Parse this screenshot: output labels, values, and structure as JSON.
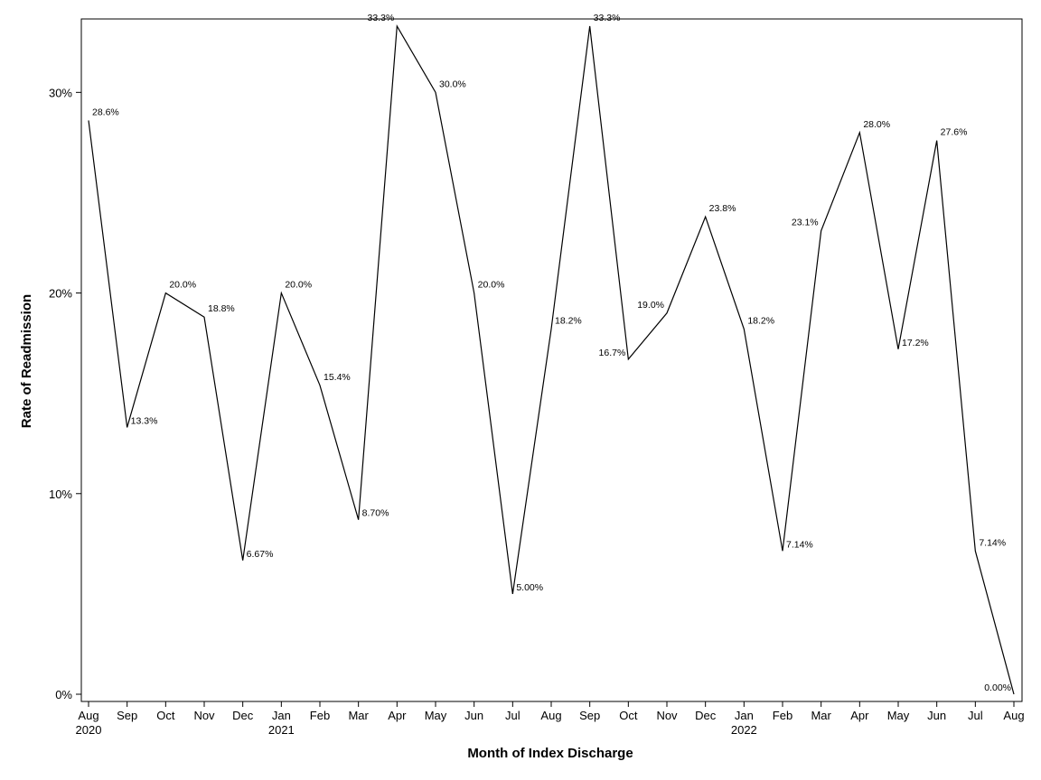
{
  "chart_data": {
    "type": "line",
    "title": "",
    "xlabel": "Month of Index Discharge",
    "ylabel": "Rate of Readmission",
    "ylim": [
      0,
      33.3
    ],
    "yticks": [
      {
        "value": 0,
        "label": "0%"
      },
      {
        "value": 10,
        "label": "10%"
      },
      {
        "value": 20,
        "label": "20%"
      },
      {
        "value": 30,
        "label": "30%"
      }
    ],
    "grid": false,
    "legend": "none",
    "categories": [
      "Aug",
      "Sep",
      "Oct",
      "Nov",
      "Dec",
      "Jan",
      "Feb",
      "Mar",
      "Apr",
      "May",
      "Jun",
      "Jul",
      "Aug",
      "Sep",
      "Oct",
      "Nov",
      "Dec",
      "Jan",
      "Feb",
      "Mar",
      "Apr",
      "May",
      "Jun",
      "Jul",
      "Aug"
    ],
    "year_labels": [
      "2020",
      "",
      "",
      "",
      "",
      "2021",
      "",
      "",
      "",
      "",
      "",
      "",
      "",
      "",
      "",
      "",
      "",
      "2022",
      "",
      "",
      "",
      "",
      "",
      "",
      ""
    ],
    "series": [
      {
        "name": "Rate of Readmission",
        "color": "#000000",
        "values": [
          28.6,
          13.3,
          20.0,
          18.8,
          6.67,
          20.0,
          15.4,
          8.7,
          33.3,
          30.0,
          20.0,
          5.0,
          18.2,
          33.3,
          16.7,
          19.0,
          23.8,
          18.2,
          7.14,
          23.1,
          28.0,
          17.2,
          27.6,
          7.14,
          0.0
        ],
        "labels": [
          "28.6%",
          "13.3%",
          "20.0%",
          "18.8%",
          "6.67%",
          "20.0%",
          "15.4%",
          "8.70%",
          "33.3%",
          "30.0%",
          "20.0%",
          "5.00%",
          "18.2%",
          "33.3%",
          "16.7%",
          "19.0%",
          "23.8%",
          "18.2%",
          "7.14%",
          "23.1%",
          "28.0%",
          "17.2%",
          "27.6%",
          "7.14%",
          "0.00%"
        ]
      }
    ]
  }
}
